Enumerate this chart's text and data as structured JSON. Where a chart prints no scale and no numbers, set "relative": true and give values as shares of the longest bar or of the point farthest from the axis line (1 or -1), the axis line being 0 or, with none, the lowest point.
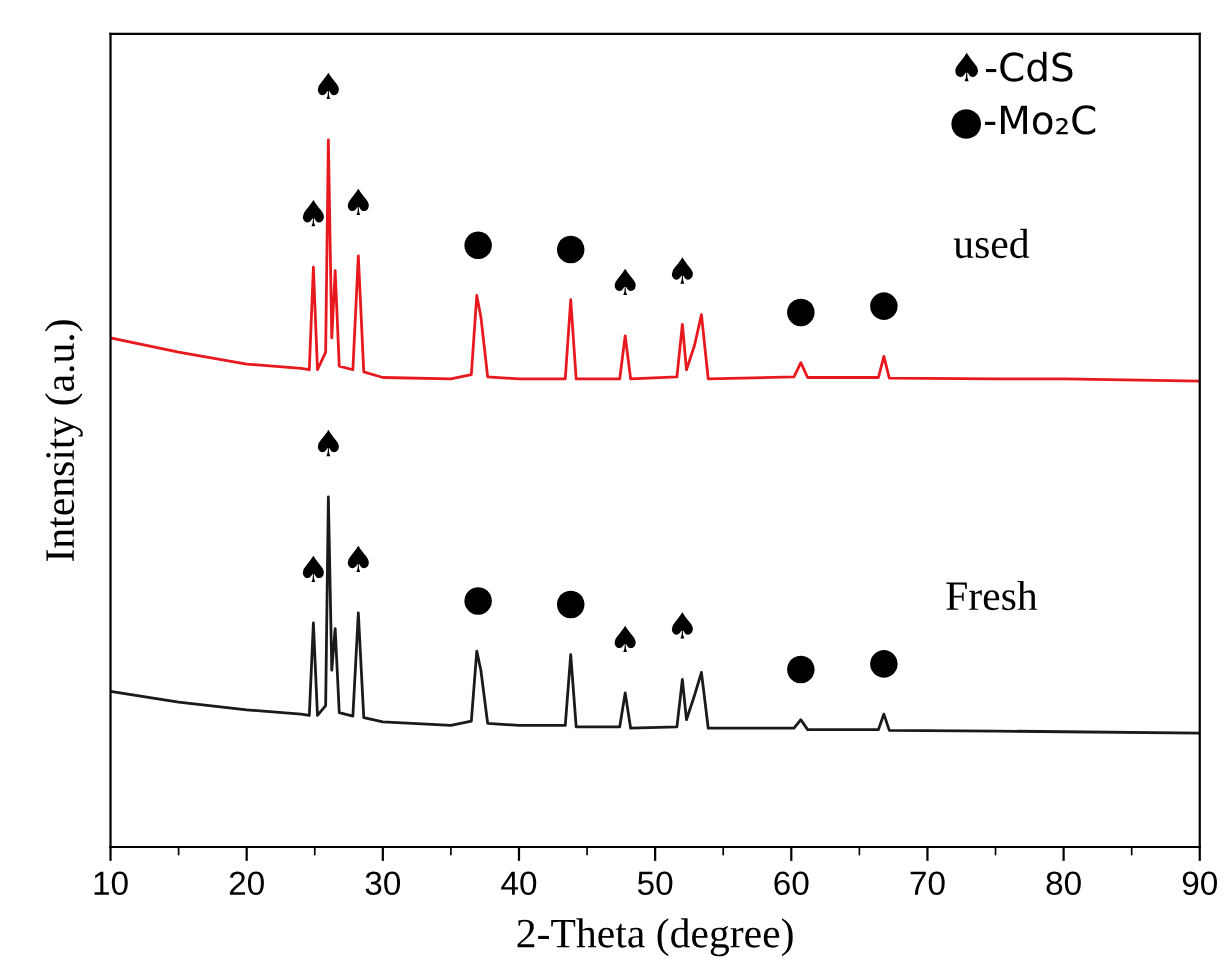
{
  "chart_data": {
    "type": "line",
    "relative": true,
    "xlabel": "2-Theta (degree)",
    "ylabel": "Intensity (a.u.)",
    "xlim": [
      10,
      90
    ],
    "xticks": [
      10,
      20,
      30,
      40,
      50,
      60,
      70,
      80,
      90
    ],
    "grid": false,
    "legend": false,
    "marker": "none",
    "line_style": "solid",
    "tick_labels": "x",
    "series": [
      {
        "name": "used",
        "color": "#e8191e",
        "x": [
          10,
          15,
          20,
          24,
          24.6,
          24.9,
          25.2,
          25.8,
          26.0,
          26.25,
          26.5,
          26.8,
          27.8,
          28.2,
          28.6,
          30,
          35,
          36.5,
          36.9,
          37.2,
          37.7,
          40,
          43.4,
          43.8,
          44.2,
          47.4,
          47.8,
          48.2,
          51.6,
          52.0,
          52.3,
          52.9,
          53.4,
          53.9,
          60.2,
          60.7,
          61.2,
          66.4,
          66.8,
          67.2,
          75,
          80,
          90
        ],
        "values": [
          0.72,
          0.7,
          0.683,
          0.677,
          0.675,
          0.82,
          0.675,
          0.7,
          1.0,
          0.72,
          0.815,
          0.68,
          0.675,
          0.836,
          0.672,
          0.664,
          0.662,
          0.668,
          0.78,
          0.75,
          0.665,
          0.662,
          0.662,
          0.774,
          0.662,
          0.662,
          0.723,
          0.662,
          0.665,
          0.739,
          0.675,
          0.71,
          0.753,
          0.662,
          0.665,
          0.685,
          0.664,
          0.664,
          0.694,
          0.663,
          0.662,
          0.662,
          0.659
        ]
      },
      {
        "name": "Fresh",
        "color": "#1a1a1a",
        "x": [
          10,
          15,
          20,
          24,
          24.6,
          24.9,
          25.2,
          25.8,
          26.0,
          26.25,
          26.5,
          26.8,
          27.8,
          28.2,
          28.6,
          30,
          35,
          36.5,
          36.9,
          37.2,
          37.7,
          40,
          43.4,
          43.8,
          44.2,
          47.4,
          47.8,
          48.2,
          51.6,
          52.0,
          52.3,
          52.9,
          53.4,
          53.9,
          60.2,
          60.7,
          61.2,
          66.4,
          66.8,
          67.2,
          75,
          80,
          90
        ],
        "values": [
          0.22,
          0.205,
          0.194,
          0.188,
          0.186,
          0.317,
          0.186,
          0.2,
          0.495,
          0.25,
          0.309,
          0.19,
          0.185,
          0.331,
          0.183,
          0.177,
          0.172,
          0.178,
          0.277,
          0.25,
          0.175,
          0.172,
          0.172,
          0.272,
          0.17,
          0.17,
          0.218,
          0.168,
          0.17,
          0.237,
          0.18,
          0.215,
          0.247,
          0.168,
          0.168,
          0.18,
          0.166,
          0.166,
          0.188,
          0.165,
          0.164,
          0.163,
          0.161
        ]
      }
    ],
    "annotations": [
      "♠-CdS",
      "●-Mo₂C",
      {
        "text": "♠",
        "x": 24.9,
        "y": 0.82
      },
      {
        "text": "♠",
        "x": 26.0,
        "y": 1.0
      },
      {
        "text": "♠",
        "x": 28.2,
        "y": 0.836
      },
      {
        "text": "●",
        "x": 37.0,
        "y": 0.78
      },
      {
        "text": "●",
        "x": 43.8,
        "y": 0.774
      },
      {
        "text": "♠",
        "x": 47.8,
        "y": 0.723
      },
      {
        "text": "♠",
        "x": 52.0,
        "y": 0.739
      },
      {
        "text": "●",
        "x": 60.7,
        "y": 0.685
      },
      {
        "text": "●",
        "x": 66.8,
        "y": 0.694
      },
      {
        "text": "♠",
        "x": 24.9,
        "y": 0.317
      },
      {
        "text": "♠",
        "x": 26.0,
        "y": 0.495
      },
      {
        "text": "♠",
        "x": 28.2,
        "y": 0.331
      },
      {
        "text": "●",
        "x": 37.0,
        "y": 0.277
      },
      {
        "text": "●",
        "x": 43.8,
        "y": 0.272
      },
      {
        "text": "♠",
        "x": 47.8,
        "y": 0.218
      },
      {
        "text": "♠",
        "x": 52.0,
        "y": 0.237
      },
      {
        "text": "●",
        "x": 60.7,
        "y": 0.18
      },
      {
        "text": "●",
        "x": 66.8,
        "y": 0.188
      }
    ]
  }
}
